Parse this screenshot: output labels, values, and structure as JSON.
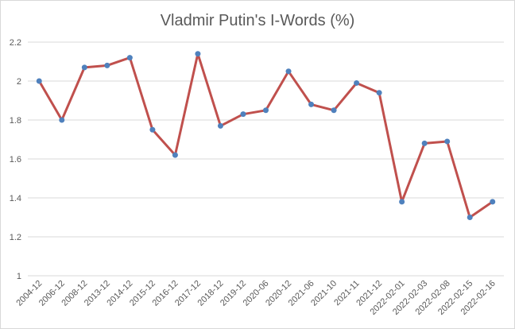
{
  "chart_data": {
    "type": "line",
    "title": "Vladmir Putin's I-Words (%)",
    "xlabel": "",
    "ylabel": "",
    "categories": [
      "2004-12",
      "2006-12",
      "2008-12",
      "2013-12",
      "2014-12",
      "2015-12",
      "2016-12",
      "2017-12",
      "2018-12",
      "2019-12",
      "2020-06",
      "2020-12",
      "2021-06",
      "2021-10",
      "2021-11",
      "2021-12",
      "2022-02-01",
      "2022-02-03",
      "2022-02-08",
      "2022-02-15",
      "2022-02-16"
    ],
    "series": [
      {
        "values": [
          2.0,
          1.8,
          2.07,
          2.08,
          2.12,
          1.75,
          1.62,
          2.14,
          1.77,
          1.83,
          1.85,
          2.05,
          1.88,
          1.85,
          1.99,
          1.94,
          1.38,
          1.68,
          1.69,
          1.3,
          1.38
        ]
      }
    ],
    "ylim": [
      1,
      2.2
    ],
    "yticks": [
      "1",
      "1.2",
      "1.4",
      "1.6",
      "1.8",
      "2",
      "2.2"
    ],
    "grid": true,
    "colors": {
      "line": "#c0504d",
      "marker": "#4f81bd",
      "grid": "#d9d9d9",
      "text": "#595959"
    }
  }
}
